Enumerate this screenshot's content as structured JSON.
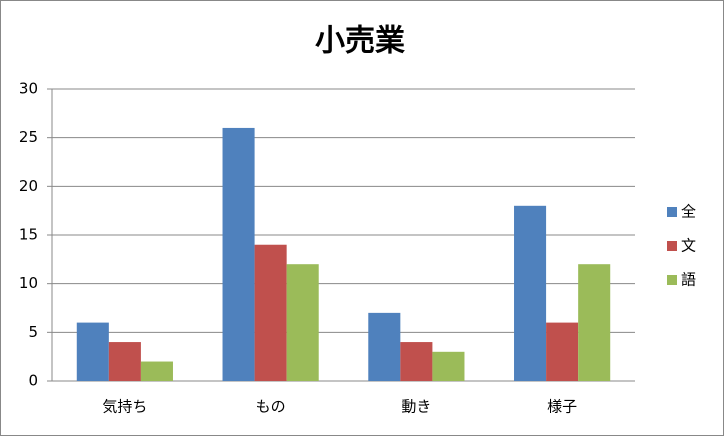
{
  "chart_data": {
    "type": "bar",
    "title": "小売業",
    "categories": [
      "気持ち",
      "もの",
      "動き",
      "様子"
    ],
    "series": [
      {
        "name": "全",
        "color": "#4f81bd",
        "values": [
          6,
          26,
          7,
          18
        ]
      },
      {
        "name": "文",
        "color": "#c0504d",
        "values": [
          4,
          14,
          4,
          6
        ]
      },
      {
        "name": "語",
        "color": "#9bbb59",
        "values": [
          2,
          12,
          3,
          12
        ]
      }
    ],
    "ylim": [
      0,
      30
    ],
    "yticks": [
      0,
      5,
      10,
      15,
      20,
      25,
      30
    ],
    "grid": true,
    "legend": "right"
  }
}
